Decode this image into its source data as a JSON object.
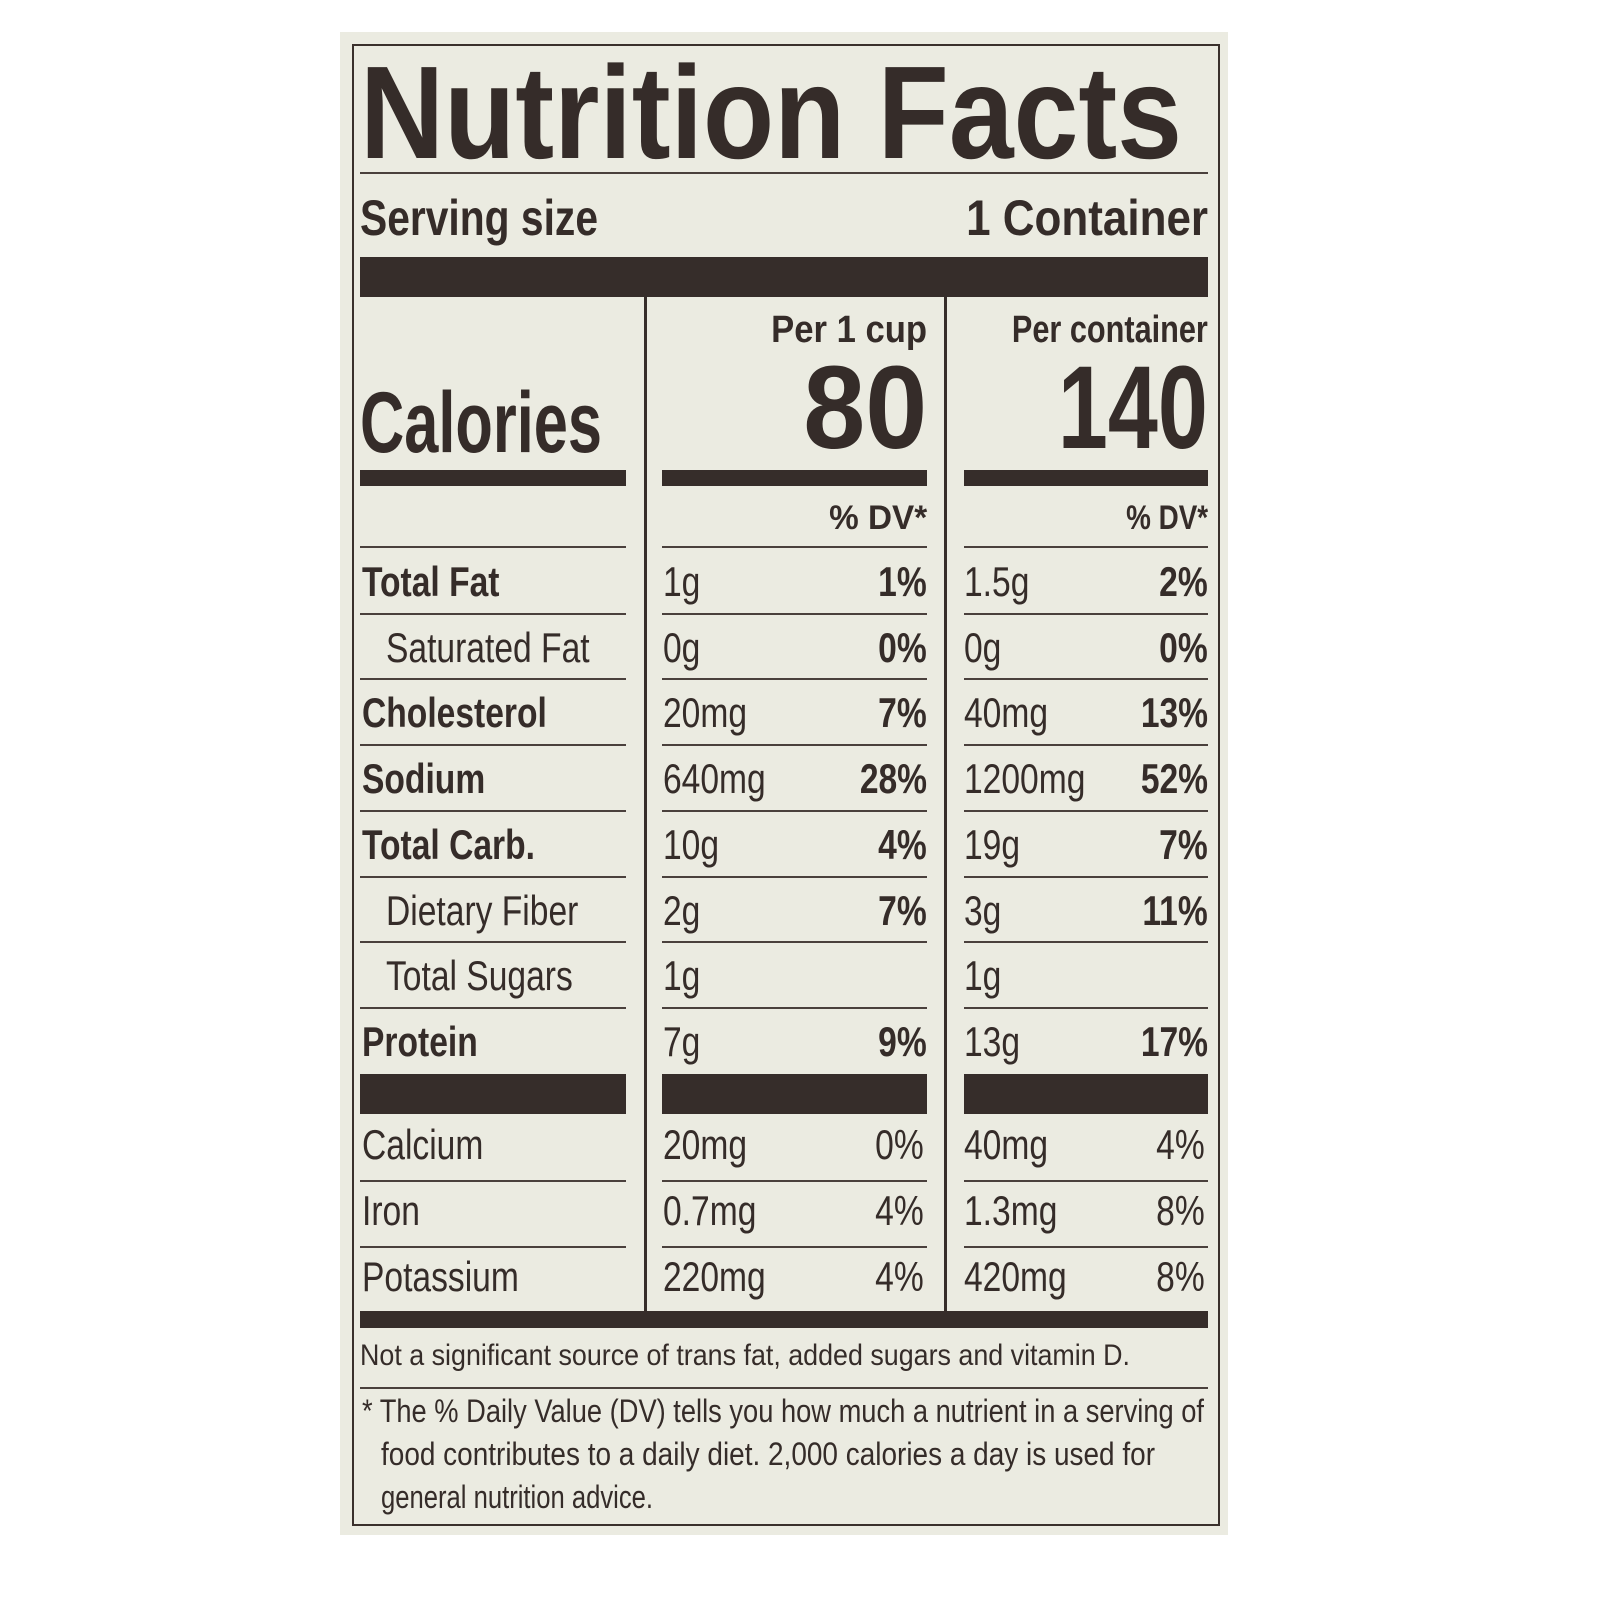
{
  "label": {
    "title": "Nutrition Facts",
    "serving_size_label": "Serving size",
    "serving_size_value": "1 Container",
    "calories_label": "Calories",
    "columns": [
      {
        "header": "Per 1 cup",
        "calories": "80",
        "dv_header": "% DV*"
      },
      {
        "header": "Per container",
        "calories": "140",
        "dv_header": "% DV*"
      }
    ],
    "nutrients": [
      {
        "name": "Total Fat",
        "bold": true,
        "indent": false,
        "cup_amount": "1g",
        "cup_dv": "1%",
        "container_amount": "1.5g",
        "container_dv": "2%"
      },
      {
        "name": "Saturated Fat",
        "bold": false,
        "indent": true,
        "cup_amount": "0g",
        "cup_dv": "0%",
        "container_amount": "0g",
        "container_dv": "0%"
      },
      {
        "name": "Cholesterol",
        "bold": true,
        "indent": false,
        "cup_amount": "20mg",
        "cup_dv": "7%",
        "container_amount": "40mg",
        "container_dv": "13%"
      },
      {
        "name": "Sodium",
        "bold": true,
        "indent": false,
        "cup_amount": "640mg",
        "cup_dv": "28%",
        "container_amount": "1200mg",
        "container_dv": "52%"
      },
      {
        "name": "Total Carb.",
        "bold": true,
        "indent": false,
        "cup_amount": "10g",
        "cup_dv": "4%",
        "container_amount": "19g",
        "container_dv": "7%"
      },
      {
        "name": "Dietary Fiber",
        "bold": false,
        "indent": true,
        "cup_amount": "2g",
        "cup_dv": "7%",
        "container_amount": "3g",
        "container_dv": "11%"
      },
      {
        "name": "Total Sugars",
        "bold": false,
        "indent": true,
        "cup_amount": "1g",
        "cup_dv": "",
        "container_amount": "1g",
        "container_dv": ""
      },
      {
        "name": "Protein",
        "bold": true,
        "indent": false,
        "cup_amount": "7g",
        "cup_dv": "9%",
        "container_amount": "13g",
        "container_dv": "17%"
      }
    ],
    "minerals": [
      {
        "name": "Calcium",
        "cup_amount": "20mg",
        "cup_dv": "0%",
        "container_amount": "40mg",
        "container_dv": "4%"
      },
      {
        "name": "Iron",
        "cup_amount": "0.7mg",
        "cup_dv": "4%",
        "container_amount": "1.3mg",
        "container_dv": "8%"
      },
      {
        "name": "Potassium",
        "cup_amount": "220mg",
        "cup_dv": "4%",
        "container_amount": "420mg",
        "container_dv": "8%"
      }
    ],
    "not_significant": "Not a significant source of trans fat, added sugars and vitamin D.",
    "footnote_lines": [
      "* The % Daily Value (DV) tells you how much a nutrient in a serving of",
      "food contributes to a daily diet. 2,000 calories a day is used for",
      "general nutrition advice."
    ],
    "colors": {
      "ink": "#352c29",
      "paper": "#ebebe1"
    }
  }
}
